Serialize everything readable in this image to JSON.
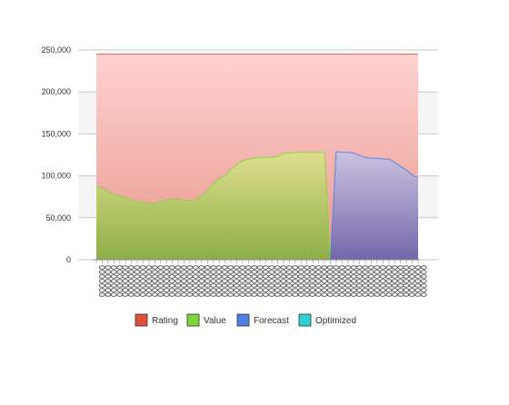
{
  "chart_data": {
    "type": "area",
    "title": "",
    "xlabel": "",
    "ylabel": "",
    "ylim": [
      0,
      250000
    ],
    "yticks": [
      0,
      50000,
      100000,
      150000,
      200000,
      250000
    ],
    "ytick_labels": [
      "0",
      "50,000",
      "100,000",
      "150,000",
      "200,000",
      "250,000"
    ],
    "grid": "horizontal",
    "legend_placement": "bottom",
    "x_count": 56,
    "x_tick_text": "0000000",
    "series": [
      {
        "name": "Rating",
        "color": "#e0503c",
        "start_index": 0,
        "end_index": 55,
        "values": [
          245000,
          245000
        ]
      },
      {
        "name": "Value",
        "color": "#7ed63e",
        "start_index": 0,
        "end_index": 40,
        "values": [
          87000,
          85000,
          81000,
          78000,
          76000,
          74000,
          72000,
          69000,
          68000,
          67000,
          67000,
          69000,
          71000,
          72000,
          72000,
          71000,
          70000,
          71000,
          76000,
          83000,
          90000,
          97000,
          100000,
          108000,
          113000,
          118000,
          120000,
          121000,
          122000,
          122000,
          122000,
          123000,
          127000,
          127000,
          128000,
          128000,
          128000,
          128000,
          128000,
          128000,
          0
        ]
      },
      {
        "name": "Forecast",
        "color": "#4f7ee6",
        "start_index": 40,
        "end_index": 55,
        "values": [
          0,
          129000,
          128000,
          128000,
          127000,
          124000,
          122000,
          121000,
          121000,
          120000,
          120000,
          116000,
          111000,
          107000,
          101000,
          98000
        ]
      },
      {
        "name": "Optimized",
        "color": "#2ed0cf",
        "start_index": 40,
        "end_index": 41,
        "values": [
          0,
          0
        ]
      }
    ]
  }
}
